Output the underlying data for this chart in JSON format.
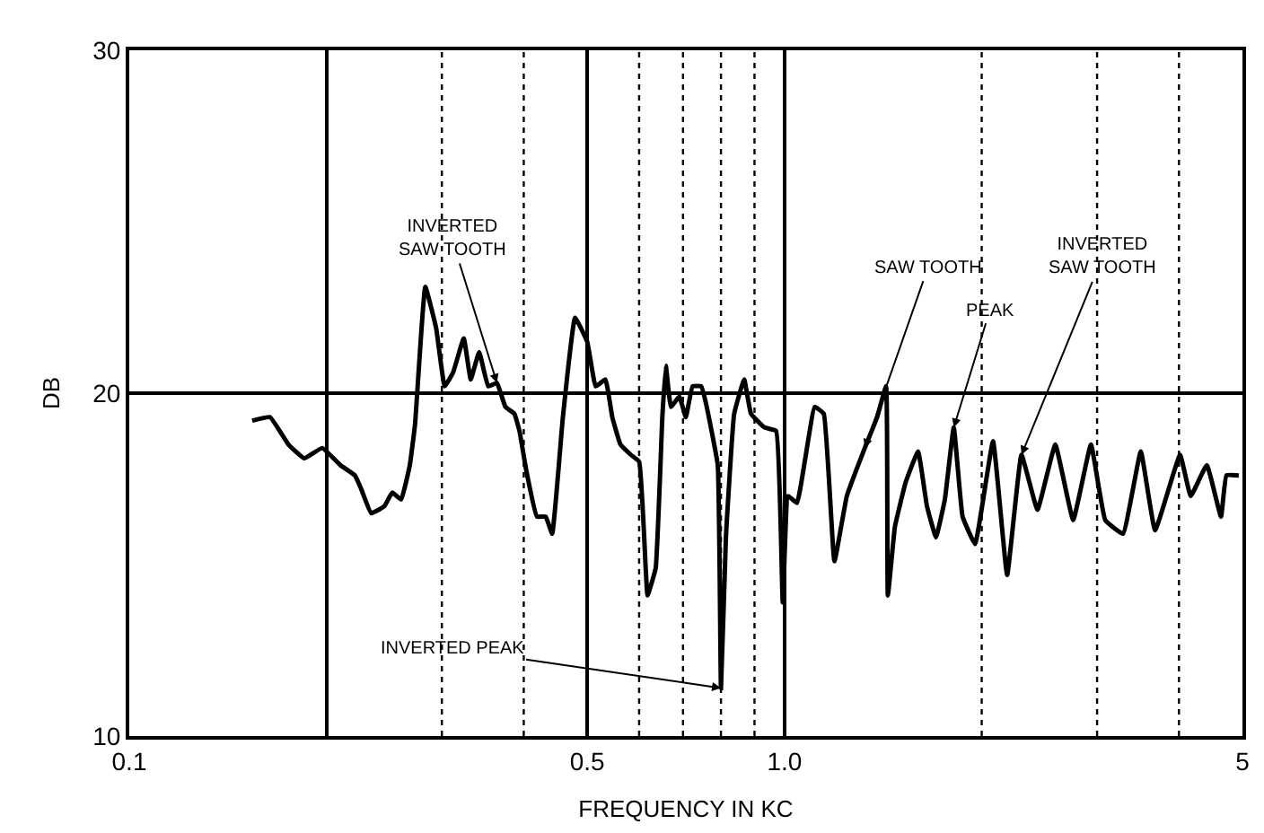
{
  "chart_data": {
    "type": "line",
    "xlabel": "FREQUENCY IN KC",
    "ylabel": "DB",
    "log": "x",
    "xlim": [
      0.1,
      5
    ],
    "ylim": [
      10,
      30
    ],
    "xticks": [
      {
        "value": 0.1,
        "label": "0.1"
      },
      {
        "value": 0.2,
        "label": null
      },
      {
        "value": 0.5,
        "label": "0.5"
      },
      {
        "value": 1.0,
        "label": "1.0"
      },
      {
        "value": 5,
        "label": "5"
      }
    ],
    "yticks": [
      10,
      20,
      30
    ],
    "grid": true,
    "marker": "none",
    "line_style": "solid",
    "ref_lines": [
      {
        "axis": "x",
        "value": 0.3,
        "line_style": "dotted"
      },
      {
        "axis": "x",
        "value": 0.4,
        "line_style": "dotted"
      },
      {
        "axis": "x",
        "value": 0.6,
        "line_style": "dotted"
      },
      {
        "axis": "x",
        "value": 0.7,
        "line_style": "dotted"
      },
      {
        "axis": "x",
        "value": 0.8,
        "line_style": "dotted"
      },
      {
        "axis": "x",
        "value": 0.9,
        "line_style": "dotted"
      },
      {
        "axis": "x",
        "value": 2,
        "line_style": "dotted"
      },
      {
        "axis": "x",
        "value": 3,
        "line_style": "dotted"
      },
      {
        "axis": "x",
        "value": 4,
        "line_style": "dotted"
      }
    ],
    "annotations": [
      {
        "text": "INVERTED\nSAW TOOTH",
        "x": 0.364,
        "y": 20.3
      },
      {
        "text": "SAW TOOTH",
        "x": 1.326,
        "y": 18.4
      },
      {
        "text": "PEAK",
        "x": 1.813,
        "y": 19.0
      },
      {
        "text": "INVERTED\nSAW TOOTH",
        "x": 2.3,
        "y": 18.2
      },
      {
        "text": "INVERTED PEAK",
        "x": 0.8,
        "y": 11.4
      }
    ],
    "series": [
      {
        "color": "#000000",
        "x": [
          0.154,
          0.164,
          0.175,
          0.185,
          0.197,
          0.21,
          0.221,
          0.226,
          0.234,
          0.245,
          0.252,
          0.26,
          0.268,
          0.273,
          0.283,
          0.294,
          0.303,
          0.312,
          0.324,
          0.332,
          0.342,
          0.353,
          0.364,
          0.375,
          0.387,
          0.394,
          0.404,
          0.419,
          0.432,
          0.442,
          0.459,
          0.479,
          0.5,
          0.515,
          0.533,
          0.546,
          0.562,
          0.583,
          0.6,
          0.614,
          0.618,
          0.636,
          0.651,
          0.659,
          0.671,
          0.691,
          0.707,
          0.724,
          0.746,
          0.759,
          0.791,
          0.8,
          0.814,
          0.838,
          0.868,
          0.889,
          0.932,
          0.971,
          0.994,
          1.013,
          1.045,
          1.112,
          1.148,
          1.192,
          1.245,
          1.326,
          1.385,
          1.429,
          1.438,
          1.474,
          1.531,
          1.599,
          1.65,
          1.703,
          1.757,
          1.813,
          1.87,
          1.954,
          2.081,
          2.187,
          2.3,
          2.433,
          2.59,
          2.758,
          2.936,
          3.087,
          3.286,
          3.498,
          3.678,
          4.015,
          4.169,
          4.411,
          4.637,
          4.726,
          4.936
        ],
        "values": [
          19.2,
          19.3,
          18.5,
          18.1,
          18.4,
          17.9,
          17.6,
          17.2,
          16.5,
          16.7,
          17.1,
          16.9,
          17.9,
          19.1,
          23.1,
          21.9,
          20.2,
          20.6,
          21.6,
          20.4,
          21.2,
          20.2,
          20.3,
          19.6,
          19.4,
          18.9,
          17.7,
          16.4,
          16.4,
          15.9,
          19.3,
          22.2,
          21.5,
          20.2,
          20.4,
          19.3,
          18.5,
          18.2,
          18.0,
          14.9,
          14.1,
          14.9,
          19.3,
          20.8,
          19.6,
          19.9,
          19.3,
          20.2,
          20.2,
          19.7,
          17.9,
          11.4,
          15.8,
          19.4,
          20.4,
          19.4,
          19.0,
          18.9,
          13.9,
          17.0,
          16.8,
          19.6,
          19.4,
          15.1,
          17.0,
          18.4,
          19.3,
          20.2,
          14.1,
          16.1,
          17.4,
          18.3,
          16.7,
          15.8,
          16.9,
          19.0,
          16.4,
          15.6,
          18.6,
          14.7,
          18.2,
          16.6,
          18.5,
          16.3,
          18.5,
          16.3,
          15.9,
          18.3,
          16.0,
          18.2,
          17.0,
          17.9,
          16.4,
          17.6,
          17.6
        ]
      }
    ]
  }
}
